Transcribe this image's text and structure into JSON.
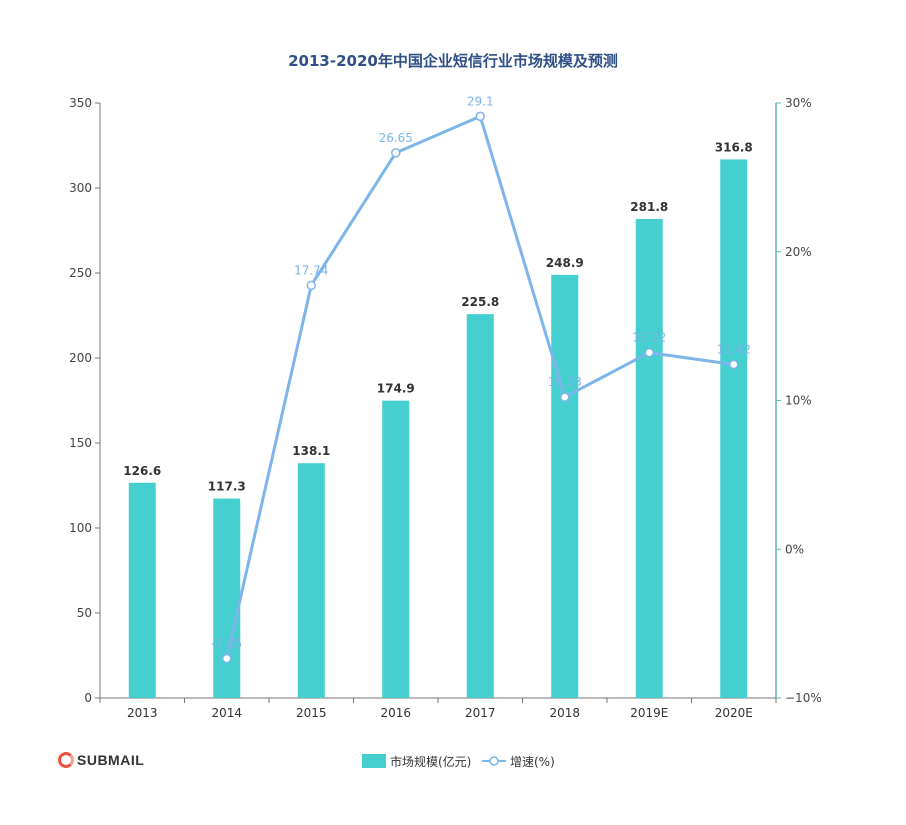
{
  "chart_data": {
    "type": "bar",
    "title": "2013-2020年中国企业短信行业市场规模及预测",
    "categories": [
      "2013",
      "2014",
      "2015",
      "2016",
      "2017",
      "2018",
      "2019E",
      "2020E"
    ],
    "series": [
      {
        "name": "市场规模(亿元)",
        "type": "bar",
        "axis": "left",
        "values": [
          126.6,
          117.3,
          138.1,
          174.9,
          225.8,
          248.9,
          281.8,
          316.8
        ],
        "labels": [
          "126.6",
          "117.3",
          "138.1",
          "174.9",
          "225.8",
          "248.9",
          "281.8",
          "316.8"
        ]
      },
      {
        "name": "增速(%)",
        "type": "line",
        "axis": "right",
        "values": [
          -7.35,
          17.74,
          26.65,
          29.1,
          10.23,
          13.22,
          12.42
        ],
        "x": [
          "2014",
          "2015",
          "2016",
          "2017",
          "2018",
          "2019E",
          "2020E"
        ],
        "labels": [
          "-7.35",
          "17.74",
          "26.65",
          "29.1",
          "10.23",
          "13.22",
          "12.42"
        ]
      }
    ],
    "y_left": {
      "range": [
        0,
        350
      ],
      "ticks": [
        "0",
        "50",
        "100",
        "150",
        "200",
        "250",
        "300",
        "350"
      ]
    },
    "y_right": {
      "range": [
        -10,
        30
      ],
      "ticks": [
        "−10%",
        "0%",
        "10%",
        "20%",
        "30%"
      ]
    },
    "legend": {
      "placement": "bottom-center"
    },
    "grid": false
  },
  "brand": {
    "name": "SUBMAIL"
  },
  "colors": {
    "bar": "#45cfcf",
    "line": "#7db5ea",
    "title": "#2f4f86",
    "axis_left": "#777777",
    "axis_right": "#5fb7b7",
    "bar_label": "#333333"
  }
}
